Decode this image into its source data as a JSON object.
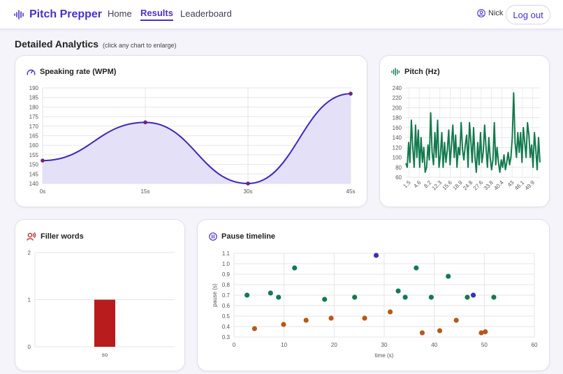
{
  "app": {
    "brand": "Pitch Prepper",
    "nav": [
      {
        "label": "Home",
        "active": false
      },
      {
        "label": "Results",
        "active": true
      },
      {
        "label": "Leaderboard",
        "active": false
      }
    ],
    "user_name": "Nick",
    "logout_label": "Log out",
    "accent_color": "#4a2fc9"
  },
  "page": {
    "title": "Detailed Analytics",
    "hint": "(click any chart to enlarge)"
  },
  "cards": {
    "speaking_rate": {
      "title": "Speaking rate (WPM)",
      "icon": "speedometer-icon"
    },
    "pitch": {
      "title": "Pitch (Hz)",
      "icon": "audio-waveform-icon"
    },
    "filler": {
      "title": "Filler words",
      "icon": "speaking-person-icon"
    },
    "pause": {
      "title": "Pause timeline",
      "icon": "pause-circle-icon"
    }
  },
  "chart_data": [
    {
      "id": "speaking_rate",
      "type": "line",
      "title": "Speaking rate (WPM)",
      "x": [
        "0s",
        "15s",
        "30s",
        "45s"
      ],
      "values": [
        152,
        172,
        140,
        187
      ],
      "ylim": [
        140,
        190
      ],
      "yticks": [
        140,
        145,
        150,
        155,
        160,
        165,
        170,
        175,
        180,
        185,
        190
      ],
      "color": "#3f27b8",
      "fill": "#e3e0f7",
      "grid": true
    },
    {
      "id": "pitch",
      "type": "line",
      "title": "Pitch (Hz)",
      "ylim": [
        60,
        240
      ],
      "yticks": [
        60,
        80,
        100,
        120,
        140,
        160,
        180,
        200,
        220,
        240
      ],
      "xtick_labels": [
        "1.5",
        "4.6",
        "8.2",
        "12.3",
        "15.6",
        "18.9",
        "24.8",
        "27.6",
        "33.8",
        "40.4",
        "43",
        "46.1",
        "49.9"
      ],
      "values": [
        88,
        80,
        130,
        90,
        175,
        120,
        80,
        165,
        100,
        155,
        80,
        140,
        90,
        120,
        70,
        80,
        125,
        95,
        190,
        110,
        85,
        150,
        100,
        175,
        80,
        105,
        150,
        80,
        130,
        90,
        115,
        155,
        85,
        125,
        165,
        100,
        145,
        80,
        120,
        105,
        170,
        115,
        95,
        125,
        145,
        80,
        170,
        135,
        90,
        160,
        100,
        70,
        130,
        85,
        150,
        90,
        110,
        165,
        120,
        80,
        140,
        100,
        75,
        95,
        170,
        85,
        120,
        90,
        70,
        95,
        80,
        105,
        75,
        90,
        110,
        85,
        100,
        140,
        230,
        130,
        100,
        150,
        110,
        150,
        90,
        160,
        130,
        100,
        170,
        145,
        100,
        125,
        80,
        150,
        115,
        75,
        140,
        90
      ],
      "color": "#137a4e",
      "grid": true
    },
    {
      "id": "filler",
      "type": "bar",
      "title": "Filler words",
      "categories": [
        "so"
      ],
      "values": [
        1
      ],
      "ylim": [
        0,
        2
      ],
      "yticks": [
        0,
        1,
        2
      ],
      "color": "#b91c1c",
      "grid": true
    },
    {
      "id": "pause",
      "type": "scatter",
      "title": "Pause timeline",
      "xlabel": "time (s)",
      "ylabel": "pause (s)",
      "xlim": [
        0,
        60
      ],
      "ylim": [
        0.3,
        1.1
      ],
      "xticks": [
        0,
        10,
        20,
        30,
        40,
        50,
        60
      ],
      "yticks": [
        0.3,
        0.4,
        0.5,
        0.6,
        0.7,
        0.8,
        0.9,
        1.0,
        1.1
      ],
      "colors": {
        "green": "#137a4e",
        "orange": "#b4591a",
        "blue": "#3a2ec4"
      },
      "points": [
        {
          "x": 2.6,
          "y": 0.7,
          "c": "green"
        },
        {
          "x": 7.3,
          "y": 0.72,
          "c": "green"
        },
        {
          "x": 8.9,
          "y": 0.68,
          "c": "green"
        },
        {
          "x": 12.1,
          "y": 0.96,
          "c": "green"
        },
        {
          "x": 18.1,
          "y": 0.66,
          "c": "green"
        },
        {
          "x": 24.1,
          "y": 0.68,
          "c": "green"
        },
        {
          "x": 32.8,
          "y": 0.74,
          "c": "green"
        },
        {
          "x": 34.2,
          "y": 0.68,
          "c": "green"
        },
        {
          "x": 36.4,
          "y": 0.96,
          "c": "green"
        },
        {
          "x": 39.4,
          "y": 0.68,
          "c": "green"
        },
        {
          "x": 42.8,
          "y": 0.88,
          "c": "green"
        },
        {
          "x": 46.6,
          "y": 0.68,
          "c": "green"
        },
        {
          "x": 51.9,
          "y": 0.68,
          "c": "green"
        },
        {
          "x": 4.1,
          "y": 0.38,
          "c": "orange"
        },
        {
          "x": 9.9,
          "y": 0.42,
          "c": "orange"
        },
        {
          "x": 14.4,
          "y": 0.46,
          "c": "orange"
        },
        {
          "x": 19.4,
          "y": 0.48,
          "c": "orange"
        },
        {
          "x": 26.1,
          "y": 0.48,
          "c": "orange"
        },
        {
          "x": 31.2,
          "y": 0.54,
          "c": "orange"
        },
        {
          "x": 37.6,
          "y": 0.34,
          "c": "orange"
        },
        {
          "x": 41.1,
          "y": 0.36,
          "c": "orange"
        },
        {
          "x": 44.4,
          "y": 0.46,
          "c": "orange"
        },
        {
          "x": 49.4,
          "y": 0.34,
          "c": "orange"
        },
        {
          "x": 50.2,
          "y": 0.35,
          "c": "orange"
        },
        {
          "x": 28.4,
          "y": 1.08,
          "c": "blue"
        },
        {
          "x": 47.8,
          "y": 0.7,
          "c": "blue"
        }
      ],
      "grid": true
    }
  ]
}
